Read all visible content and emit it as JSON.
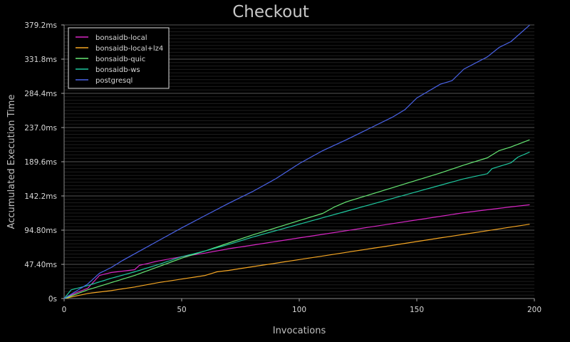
{
  "chart_data": {
    "type": "line",
    "title": "Checkout",
    "xlabel": "Invocations",
    "ylabel": "Accumulated Execution Time",
    "xlim": [
      0,
      200
    ],
    "ylim": [
      0,
      379.2
    ],
    "x_ticks": [
      0,
      50,
      100,
      150,
      200
    ],
    "x_tick_labels": [
      "0",
      "50",
      "100",
      "150",
      "200"
    ],
    "y_ticks": [
      0,
      47.4,
      94.8,
      142.2,
      189.6,
      237.0,
      284.4,
      331.8,
      379.2
    ],
    "y_tick_labels": [
      "0s",
      "47.40ms",
      "94.80ms",
      "142.2ms",
      "189.6ms",
      "237.0ms",
      "284.4ms",
      "331.8ms",
      "379.2ms"
    ],
    "grid": true,
    "legend_position": "top-left",
    "series": [
      {
        "name": "bonsaidb-local",
        "color": "#d726c4",
        "points": [
          [
            0,
            0
          ],
          [
            5,
            8
          ],
          [
            10,
            14
          ],
          [
            15,
            32
          ],
          [
            20,
            36
          ],
          [
            25,
            38
          ],
          [
            30,
            40
          ],
          [
            32,
            46
          ],
          [
            40,
            52
          ],
          [
            50,
            58
          ],
          [
            60,
            63
          ],
          [
            70,
            69
          ],
          [
            80,
            74
          ],
          [
            90,
            79
          ],
          [
            100,
            84
          ],
          [
            110,
            89
          ],
          [
            120,
            94
          ],
          [
            130,
            99
          ],
          [
            140,
            104
          ],
          [
            150,
            109
          ],
          [
            160,
            114
          ],
          [
            170,
            119
          ],
          [
            180,
            123
          ],
          [
            190,
            127
          ],
          [
            198,
            130
          ]
        ]
      },
      {
        "name": "bonsaidb-local+lz4",
        "color": "#f5a623",
        "points": [
          [
            0,
            0
          ],
          [
            10,
            7
          ],
          [
            20,
            11
          ],
          [
            30,
            16
          ],
          [
            40,
            22
          ],
          [
            50,
            27
          ],
          [
            60,
            32
          ],
          [
            65,
            37
          ],
          [
            70,
            39
          ],
          [
            80,
            44
          ],
          [
            90,
            49
          ],
          [
            100,
            54
          ],
          [
            110,
            59
          ],
          [
            120,
            64
          ],
          [
            130,
            69
          ],
          [
            140,
            74
          ],
          [
            150,
            79
          ],
          [
            160,
            84
          ],
          [
            170,
            89
          ],
          [
            180,
            94
          ],
          [
            190,
            99
          ],
          [
            198,
            103
          ]
        ]
      },
      {
        "name": "bonsaidb-quic",
        "color": "#67e874",
        "points": [
          [
            0,
            0
          ],
          [
            10,
            12
          ],
          [
            20,
            22
          ],
          [
            30,
            32
          ],
          [
            40,
            44
          ],
          [
            50,
            56
          ],
          [
            60,
            66
          ],
          [
            70,
            77
          ],
          [
            80,
            88
          ],
          [
            90,
            98
          ],
          [
            100,
            108
          ],
          [
            110,
            118
          ],
          [
            115,
            127
          ],
          [
            120,
            134
          ],
          [
            130,
            144
          ],
          [
            140,
            154
          ],
          [
            150,
            164
          ],
          [
            160,
            174
          ],
          [
            170,
            185
          ],
          [
            180,
            195
          ],
          [
            185,
            205
          ],
          [
            190,
            210
          ],
          [
            198,
            220
          ]
        ]
      },
      {
        "name": "bonsaidb-ws",
        "color": "#1ec9a0",
        "points": [
          [
            0,
            0
          ],
          [
            3,
            12
          ],
          [
            10,
            18
          ],
          [
            20,
            28
          ],
          [
            30,
            37
          ],
          [
            40,
            47
          ],
          [
            50,
            58
          ],
          [
            60,
            66
          ],
          [
            70,
            75
          ],
          [
            80,
            85
          ],
          [
            90,
            94
          ],
          [
            100,
            103
          ],
          [
            110,
            112
          ],
          [
            120,
            121
          ],
          [
            130,
            130
          ],
          [
            140,
            139
          ],
          [
            150,
            148
          ],
          [
            160,
            157
          ],
          [
            170,
            166
          ],
          [
            180,
            173
          ],
          [
            182,
            180
          ],
          [
            190,
            188
          ],
          [
            193,
            196
          ],
          [
            198,
            203
          ]
        ]
      },
      {
        "name": "postgresql",
        "color": "#4a63e8",
        "points": [
          [
            0,
            0
          ],
          [
            5,
            10
          ],
          [
            10,
            20
          ],
          [
            15,
            35
          ],
          [
            20,
            43
          ],
          [
            25,
            53
          ],
          [
            30,
            62
          ],
          [
            40,
            80
          ],
          [
            50,
            98
          ],
          [
            60,
            115
          ],
          [
            70,
            132
          ],
          [
            80,
            148
          ],
          [
            90,
            166
          ],
          [
            100,
            187
          ],
          [
            110,
            205
          ],
          [
            120,
            220
          ],
          [
            130,
            236
          ],
          [
            140,
            252
          ],
          [
            145,
            262
          ],
          [
            150,
            278
          ],
          [
            160,
            297
          ],
          [
            165,
            302
          ],
          [
            170,
            318
          ],
          [
            180,
            335
          ],
          [
            185,
            348
          ],
          [
            190,
            356
          ],
          [
            198,
            379
          ]
        ]
      }
    ]
  }
}
